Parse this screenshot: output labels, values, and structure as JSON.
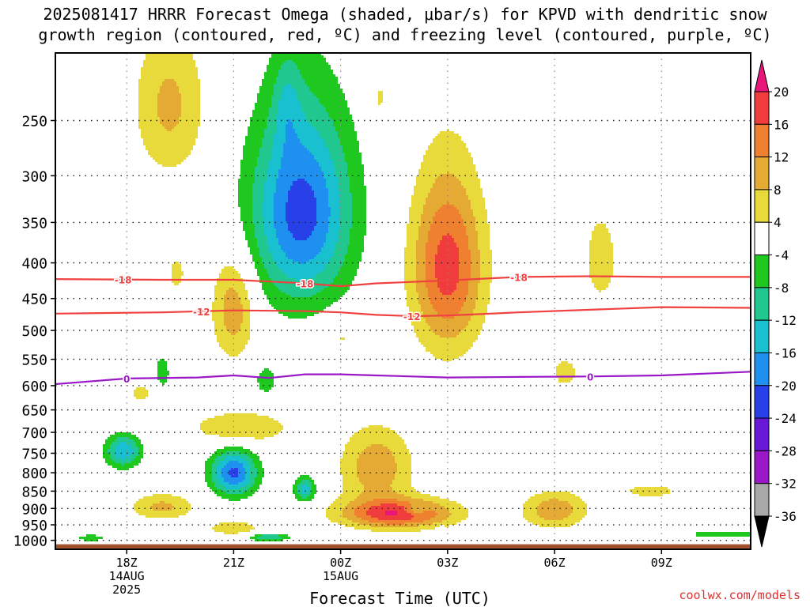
{
  "chart_data": {
    "type": "heatmap",
    "title": "2025081417 HRRR Forecast Omega (shaded, μbar/s) for KPVD with dendritic snow growth region (contoured, red, ºC) and freezing level (contoured, purple, ºC)",
    "title_lines": [
      "2025081417 HRRR Forecast Omega (shaded, μbar/s) for KPVD with dendritic snow",
      "growth region (contoured, red, ºC) and freezing level (contoured, purple, ºC)"
    ],
    "xlabel": "Forecast Time (UTC)",
    "ylabel": "",
    "credit": "coolwx.com/models",
    "x_range_hours_since_start": [
      -1,
      18.5
    ],
    "x_ticks": [
      {
        "hour": 1,
        "labels": [
          "18Z",
          "14AUG",
          "2025"
        ]
      },
      {
        "hour": 4,
        "labels": [
          "21Z"
        ]
      },
      {
        "hour": 7,
        "labels": [
          "00Z",
          "15AUG"
        ]
      },
      {
        "hour": 10,
        "labels": [
          "03Z"
        ]
      },
      {
        "hour": 13,
        "labels": [
          "06Z"
        ]
      },
      {
        "hour": 16,
        "labels": [
          "09Z"
        ]
      }
    ],
    "y_scale": "log-pressure (reversed)",
    "y_range_hPa": [
      200,
      1030
    ],
    "y_ticks_hPa": [
      250,
      300,
      350,
      400,
      450,
      500,
      550,
      600,
      650,
      700,
      750,
      800,
      850,
      900,
      950,
      1000
    ],
    "grid": true,
    "colorbar": {
      "labels": [
        "20",
        "16",
        "12",
        "8",
        "4",
        "-4",
        "-8",
        "-12",
        "-16",
        "-20",
        "-24",
        "-28",
        "-32",
        "-36"
      ],
      "bins": [
        {
          "from": 20,
          "to": 99,
          "color": "#e8157a"
        },
        {
          "from": 16,
          "to": 20,
          "color": "#f03c3c"
        },
        {
          "from": 12,
          "to": 16,
          "color": "#ee8030"
        },
        {
          "from": 8,
          "to": 12,
          "color": "#e4aa34"
        },
        {
          "from": 4,
          "to": 8,
          "color": "#e8da3a"
        },
        {
          "from": -4,
          "to": 4,
          "color": "#ffffff"
        },
        {
          "from": -8,
          "to": -4,
          "color": "#1ec81e"
        },
        {
          "from": -12,
          "to": -8,
          "color": "#20c890"
        },
        {
          "from": -16,
          "to": -12,
          "color": "#18c0d0"
        },
        {
          "from": -20,
          "to": -16,
          "color": "#1e90f0"
        },
        {
          "from": -24,
          "to": -20,
          "color": "#2840e8"
        },
        {
          "from": -28,
          "to": -24,
          "color": "#6a18d8"
        },
        {
          "from": -32,
          "to": -28,
          "color": "#9a18c8"
        },
        {
          "from": -36,
          "to": -32,
          "color": "#a8a8a8"
        },
        {
          "from": -99,
          "to": -36,
          "color": "#000000"
        }
      ]
    },
    "omega_features": [
      {
        "center_hour": 2.2,
        "center_hPa": 238,
        "halfwidth_h": 1.0,
        "halfdepth_hPa": 60,
        "peak": 9
      },
      {
        "center_hour": 4.0,
        "center_hPa": 465,
        "halfwidth_h": 0.6,
        "halfdepth_hPa": 80,
        "peak": 11
      },
      {
        "center_hour": 8.1,
        "center_hPa": 232,
        "halfwidth_h": 0.25,
        "halfdepth_hPa": 22,
        "peak": 5
      },
      {
        "center_hour": 10.0,
        "center_hPa": 405,
        "halfwidth_h": 1.0,
        "halfdepth_hPa": 120,
        "peak": 18
      },
      {
        "center_hour": 14.3,
        "center_hPa": 395,
        "halfwidth_h": 0.55,
        "halfdepth_hPa": 70,
        "peak": 6
      },
      {
        "center_hour": 7.0,
        "center_hPa": 510,
        "halfwidth_h": 0.6,
        "halfdepth_hPa": 35,
        "peak": 5
      },
      {
        "center_hour": 13.3,
        "center_hPa": 575,
        "halfwidth_h": 0.55,
        "halfdepth_hPa": 45,
        "peak": 5
      },
      {
        "center_hour": 2.4,
        "center_hPa": 415,
        "halfwidth_h": 0.35,
        "halfdepth_hPa": 35,
        "peak": 5
      },
      {
        "center_hour": 1.4,
        "center_hPa": 615,
        "halfwidth_h": 0.5,
        "halfdepth_hPa": 25,
        "peak": 5
      },
      {
        "center_hour": 4.2,
        "center_hPa": 690,
        "halfwidth_h": 1.4,
        "halfdepth_hPa": 40,
        "peak": 8
      },
      {
        "center_hour": 8.0,
        "center_hPa": 785,
        "halfwidth_h": 1.0,
        "halfdepth_hPa": 100,
        "peak": 11
      },
      {
        "center_hour": 8.6,
        "center_hPa": 915,
        "halfwidth_h": 1.6,
        "halfdepth_hPa": 45,
        "peak": 19
      },
      {
        "center_hour": 2.0,
        "center_hPa": 895,
        "halfwidth_h": 0.9,
        "halfdepth_hPa": 40,
        "peak": 9
      },
      {
        "center_hour": 4.0,
        "center_hPa": 960,
        "halfwidth_h": 0.7,
        "halfdepth_hPa": 22,
        "peak": 8
      },
      {
        "center_hour": 13.0,
        "center_hPa": 905,
        "halfwidth_h": 0.9,
        "halfdepth_hPa": 55,
        "peak": 11
      },
      {
        "center_hour": 15.7,
        "center_hPa": 850,
        "halfwidth_h": 1.2,
        "halfdepth_hPa": 30,
        "peak": 5
      },
      {
        "center_hour": 5.9,
        "center_hPa": 338,
        "halfwidth_h": 1.4,
        "halfdepth_hPa": 110,
        "peak": -22
      },
      {
        "center_hour": 5.5,
        "center_hPa": 235,
        "halfwidth_h": 0.4,
        "halfdepth_hPa": 40,
        "peak": -6
      },
      {
        "center_hour": 4.0,
        "center_hPa": 800,
        "halfwidth_h": 0.65,
        "halfdepth_hPa": 60,
        "peak": -21
      },
      {
        "center_hour": 0.9,
        "center_hPa": 745,
        "halfwidth_h": 0.5,
        "halfdepth_hPa": 40,
        "peak": -16
      },
      {
        "center_hour": 2.0,
        "center_hPa": 575,
        "halfwidth_h": 0.22,
        "halfdepth_hPa": 35,
        "peak": -7
      },
      {
        "center_hour": 4.9,
        "center_hPa": 590,
        "halfwidth_h": 0.3,
        "halfdepth_hPa": 30,
        "peak": -7
      },
      {
        "center_hour": 6.0,
        "center_hPa": 845,
        "halfwidth_h": 0.3,
        "halfdepth_hPa": 35,
        "peak": -14
      },
      {
        "center_hour": 5.0,
        "center_hPa": 990,
        "halfwidth_h": 0.55,
        "halfdepth_hPa": 13,
        "peak": -12
      },
      {
        "center_hour": 0.0,
        "center_hPa": 992,
        "halfwidth_h": 0.45,
        "halfdepth_hPa": 12,
        "peak": -7
      },
      {
        "center_hour": 9.1,
        "center_hPa": 905,
        "halfwidth_h": 0.3,
        "halfdepth_hPa": 15,
        "peak": -7
      },
      {
        "center_hour": 9.8,
        "center_hPa": 965,
        "halfwidth_h": 0.1,
        "halfdepth_hPa": 10,
        "peak": -6
      }
    ],
    "bottom_band": {
      "from_hour": 17.0,
      "to_hour": 18.5,
      "hPa_top": 975,
      "hPa_bottom": 990,
      "color": "#1ec81e"
    },
    "contours": [
      {
        "value": "-18",
        "color": "#f04040",
        "label_hours": [
          0.9,
          6.0,
          12.0
        ],
        "points": [
          [
            -1,
            422
          ],
          [
            2,
            423
          ],
          [
            4,
            423
          ],
          [
            6,
            428
          ],
          [
            7,
            432
          ],
          [
            8,
            428
          ],
          [
            10,
            424
          ],
          [
            12,
            419
          ],
          [
            14,
            418
          ],
          [
            16,
            419
          ],
          [
            18.5,
            419
          ]
        ]
      },
      {
        "value": "-12",
        "color": "#f04040",
        "label_hours": [
          3.1,
          9.0
        ],
        "points": [
          [
            -1,
            473
          ],
          [
            2,
            471
          ],
          [
            4,
            468
          ],
          [
            6,
            469
          ],
          [
            7,
            471
          ],
          [
            8,
            475
          ],
          [
            9,
            477
          ],
          [
            10,
            476
          ],
          [
            12,
            471
          ],
          [
            14,
            467
          ],
          [
            16,
            463
          ],
          [
            18.5,
            464
          ]
        ]
      },
      {
        "value": "0",
        "color": "#9a18c8",
        "label_hours": [
          1.0,
          14.0
        ],
        "points": [
          [
            -1,
            597
          ],
          [
            1,
            586
          ],
          [
            3,
            584
          ],
          [
            4,
            580
          ],
          [
            5,
            585
          ],
          [
            6,
            578
          ],
          [
            7,
            578
          ],
          [
            8,
            580
          ],
          [
            10,
            584
          ],
          [
            12,
            583
          ],
          [
            14,
            582
          ],
          [
            16,
            580
          ],
          [
            18.5,
            573
          ]
        ]
      }
    ],
    "terrain_color": "#a0522d",
    "terrain_top_hPa": 1013
  }
}
